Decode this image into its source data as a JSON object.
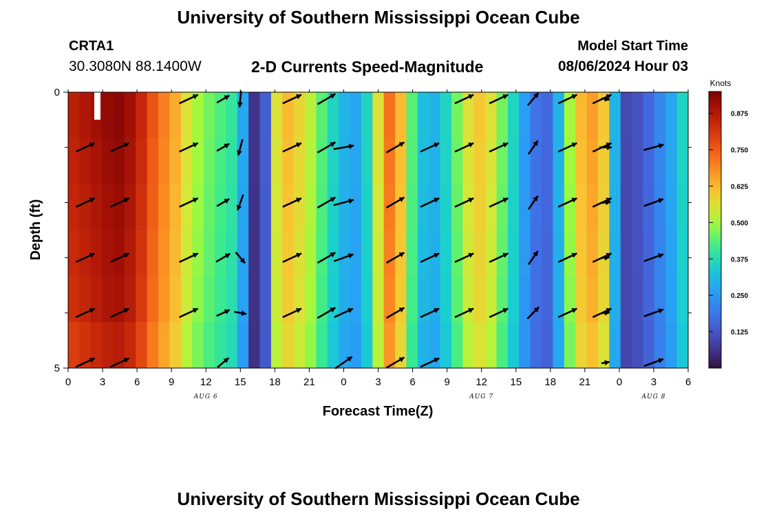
{
  "header": {
    "main_title": "University of Southern Mississippi Ocean Cube",
    "station_id": "CRTA1",
    "station_coords": "30.3080N  88.1400W",
    "subtitle": "2-D Currents Speed-Magnitude",
    "model_start_label": "Model Start Time",
    "model_start_value": "08/06/2024 Hour 03",
    "bottom_title": "University of Southern Mississippi Ocean Cube"
  },
  "chart_data": {
    "type": "heatmap",
    "title": "2-D Currents Speed-Magnitude",
    "xlabel": "Forecast Time(Z)",
    "ylabel": "Depth (ft)",
    "x_range_hours": [
      0,
      54
    ],
    "x_tick_labels": [
      "0",
      "3",
      "6",
      "9",
      "12",
      "15",
      "18",
      "21",
      "0",
      "3",
      "6",
      "9",
      "12",
      "15",
      "18",
      "21",
      "0",
      "3",
      "6"
    ],
    "date_labels": [
      {
        "label": "AUG 6",
        "hour": 12
      },
      {
        "label": "AUG 7",
        "hour": 36
      },
      {
        "label": "AUG 8",
        "hour": 51
      }
    ],
    "y_range": [
      0,
      5
    ],
    "y_tick_labels": [
      {
        "value": 0,
        "label": "0"
      },
      {
        "value": 5,
        "label": "5"
      }
    ],
    "y_minor_ticks": [
      1,
      2,
      3,
      4
    ],
    "colorbar": {
      "unit": "Knots",
      "min": 0.0,
      "max": 0.95,
      "ticks": [
        "0.125",
        "0.250",
        "0.375",
        "0.500",
        "0.625",
        "0.750",
        "0.875"
      ],
      "tick_values": [
        0.125,
        0.25,
        0.375,
        0.5,
        0.625,
        0.75,
        0.875
      ]
    },
    "speed_knots_by_hour": [
      0.86,
      0.88,
      0.9,
      0.92,
      0.93,
      0.9,
      0.84,
      0.76,
      0.7,
      0.64,
      0.56,
      0.5,
      0.46,
      0.43,
      0.4,
      0.28,
      0.06,
      0.14,
      0.56,
      0.62,
      0.58,
      0.52,
      0.44,
      0.36,
      0.3,
      0.28,
      0.36,
      0.56,
      0.72,
      0.62,
      0.44,
      0.32,
      0.3,
      0.36,
      0.46,
      0.56,
      0.6,
      0.56,
      0.46,
      0.36,
      0.26,
      0.18,
      0.16,
      0.3,
      0.5,
      0.62,
      0.66,
      0.6,
      0.3,
      0.1,
      0.12,
      0.16,
      0.22,
      0.28,
      0.36
    ],
    "depth_speed_factors": [
      1.0,
      0.99,
      0.98,
      0.97,
      0.96,
      0.93
    ],
    "vector_depths": [
      0,
      1,
      2,
      3,
      4,
      5
    ],
    "vectors": [
      {
        "hour": 1.5,
        "dir_deg": [
          null,
          -25,
          -25,
          -25,
          -25,
          -25
        ],
        "len": [
          0,
          1,
          1,
          1,
          1,
          1
        ]
      },
      {
        "hour": 4.5,
        "dir_deg": [
          null,
          -25,
          -25,
          -25,
          -25,
          -25
        ],
        "len": [
          0,
          1,
          1,
          1,
          1,
          1
        ]
      },
      {
        "hour": 10.5,
        "dir_deg": [
          -25,
          -25,
          -25,
          -25,
          -25,
          null
        ],
        "len": [
          1,
          1,
          1,
          1,
          1,
          0
        ]
      },
      {
        "hour": 13.5,
        "dir_deg": [
          -30,
          -30,
          -30,
          -30,
          -25,
          -40
        ],
        "len": [
          0.7,
          0.7,
          0.7,
          0.8,
          0.7,
          0.7
        ]
      },
      {
        "hour": 15.0,
        "dir_deg": [
          95,
          105,
          110,
          50,
          10,
          null
        ],
        "len": [
          0.8,
          0.8,
          0.8,
          0.7,
          0.6,
          0
        ]
      },
      {
        "hour": 19.5,
        "dir_deg": [
          -25,
          -25,
          -25,
          -25,
          -25,
          null
        ],
        "len": [
          1,
          1,
          1,
          1,
          1,
          0
        ]
      },
      {
        "hour": 22.5,
        "dir_deg": [
          -30,
          -30,
          -30,
          -30,
          -30,
          null
        ],
        "len": [
          1,
          1,
          1,
          1,
          1,
          0
        ]
      },
      {
        "hour": 24.0,
        "dir_deg": [
          null,
          -10,
          -15,
          -20,
          -25,
          -35
        ],
        "len": [
          0,
          1,
          1,
          1,
          1,
          1
        ]
      },
      {
        "hour": 28.5,
        "dir_deg": [
          null,
          -30,
          -30,
          -30,
          -30,
          -30
        ],
        "len": [
          0,
          1,
          1,
          1,
          1,
          1
        ]
      },
      {
        "hour": 31.5,
        "dir_deg": [
          null,
          -25,
          -25,
          -25,
          -25,
          -25
        ],
        "len": [
          0,
          1,
          1,
          1,
          1,
          1
        ]
      },
      {
        "hour": 34.5,
        "dir_deg": [
          -25,
          -25,
          -25,
          -25,
          -25,
          null
        ],
        "len": [
          1,
          1,
          1,
          1,
          1,
          0
        ]
      },
      {
        "hour": 37.5,
        "dir_deg": [
          -25,
          -25,
          -25,
          -25,
          -25,
          null
        ],
        "len": [
          1,
          1,
          1,
          1,
          1,
          0
        ]
      },
      {
        "hour": 40.5,
        "dir_deg": [
          -50,
          -55,
          -55,
          -55,
          -45,
          null
        ],
        "len": [
          0.8,
          0.8,
          0.8,
          0.8,
          0.8,
          0
        ]
      },
      {
        "hour": 43.5,
        "dir_deg": [
          -25,
          -25,
          -25,
          -25,
          -25,
          null
        ],
        "len": [
          1,
          1,
          1,
          1,
          1,
          0
        ]
      },
      {
        "hour": 46.5,
        "dir_deg": [
          -25,
          -25,
          -25,
          -25,
          -25,
          null
        ],
        "len": [
          1,
          1,
          1,
          1,
          1,
          0
        ]
      },
      {
        "hour": 46.8,
        "dir_deg": [
          10,
          0,
          -5,
          -5,
          -5,
          -10
        ],
        "len": [
          0.4,
          0.6,
          0.5,
          0.4,
          0.4,
          0.4
        ]
      },
      {
        "hour": 51.0,
        "dir_deg": [
          null,
          -15,
          -20,
          -20,
          -20,
          -20
        ],
        "len": [
          0,
          1,
          1,
          1,
          1,
          1
        ]
      }
    ]
  }
}
